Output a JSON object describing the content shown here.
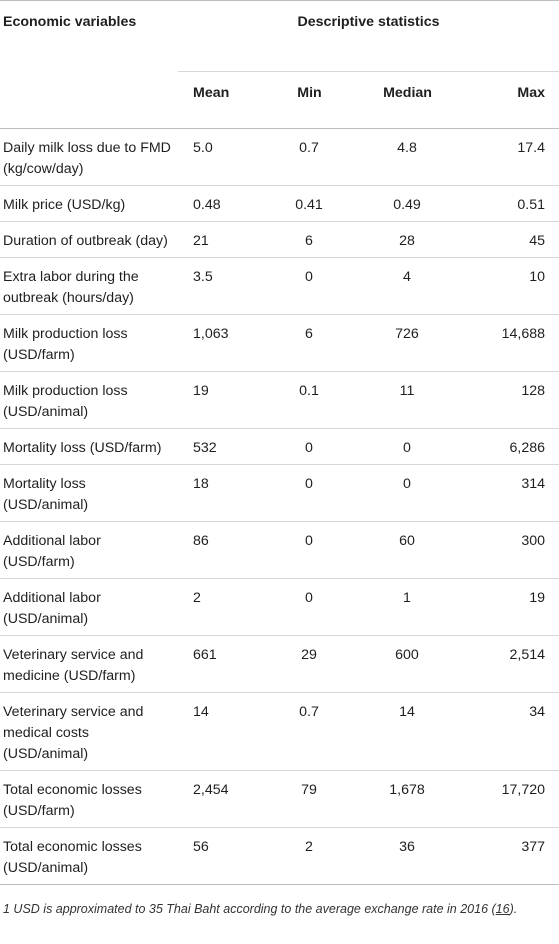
{
  "table": {
    "header": {
      "variable_label": "Economic variables",
      "group_label": "Descriptive statistics",
      "columns": [
        "Mean",
        "Min",
        "Median",
        "Max"
      ]
    },
    "rows": [
      {
        "label": "Daily milk loss due to FMD (kg/cow/day)",
        "mean": "5.0",
        "min": "0.7",
        "median": "4.8",
        "max": "17.4"
      },
      {
        "label": "Milk price (USD/kg)",
        "mean": "0.48",
        "min": "0.41",
        "median": "0.49",
        "max": "0.51"
      },
      {
        "label": "Duration of outbreak (day)",
        "mean": "21",
        "min": "6",
        "median": "28",
        "max": "45"
      },
      {
        "label": "Extra labor during the outbreak (hours/day)",
        "mean": "3.5",
        "min": "0",
        "median": "4",
        "max": "10"
      },
      {
        "label": "Milk production loss (USD/farm)",
        "mean": "1,063",
        "min": "6",
        "median": "726",
        "max": "14,688"
      },
      {
        "label": "Milk production loss (USD/animal)",
        "mean": "19",
        "min": "0.1",
        "median": "11",
        "max": "128"
      },
      {
        "label": "Mortality loss (USD/farm)",
        "mean": "532",
        "min": "0",
        "median": "0",
        "max": "6,286"
      },
      {
        "label": "Mortality loss (USD/animal)",
        "mean": "18",
        "min": "0",
        "median": "0",
        "max": "314"
      },
      {
        "label": "Additional labor (USD/farm)",
        "mean": "86",
        "min": "0",
        "median": "60",
        "max": "300"
      },
      {
        "label": "Additional labor (USD/animal)",
        "mean": "2",
        "min": "0",
        "median": "1",
        "max": "19"
      },
      {
        "label": "Veterinary service and medicine (USD/farm)",
        "mean": "661",
        "min": "29",
        "median": "600",
        "max": "2,514"
      },
      {
        "label": "Veterinary service and medical costs (USD/animal)",
        "mean": "14",
        "min": "0.7",
        "median": "14",
        "max": "34"
      },
      {
        "label": "Total economic losses (USD/farm)",
        "mean": "2,454",
        "min": "79",
        "median": "1,678",
        "max": "17,720"
      },
      {
        "label": "Total economic losses (USD/animal)",
        "mean": "56",
        "min": "2",
        "median": "36",
        "max": "377"
      }
    ]
  },
  "footnote": {
    "text_before": "1 USD is approximated to 35 Thai Baht according to the average exchange rate in 2016 (",
    "reference": "16",
    "text_after": ")."
  }
}
